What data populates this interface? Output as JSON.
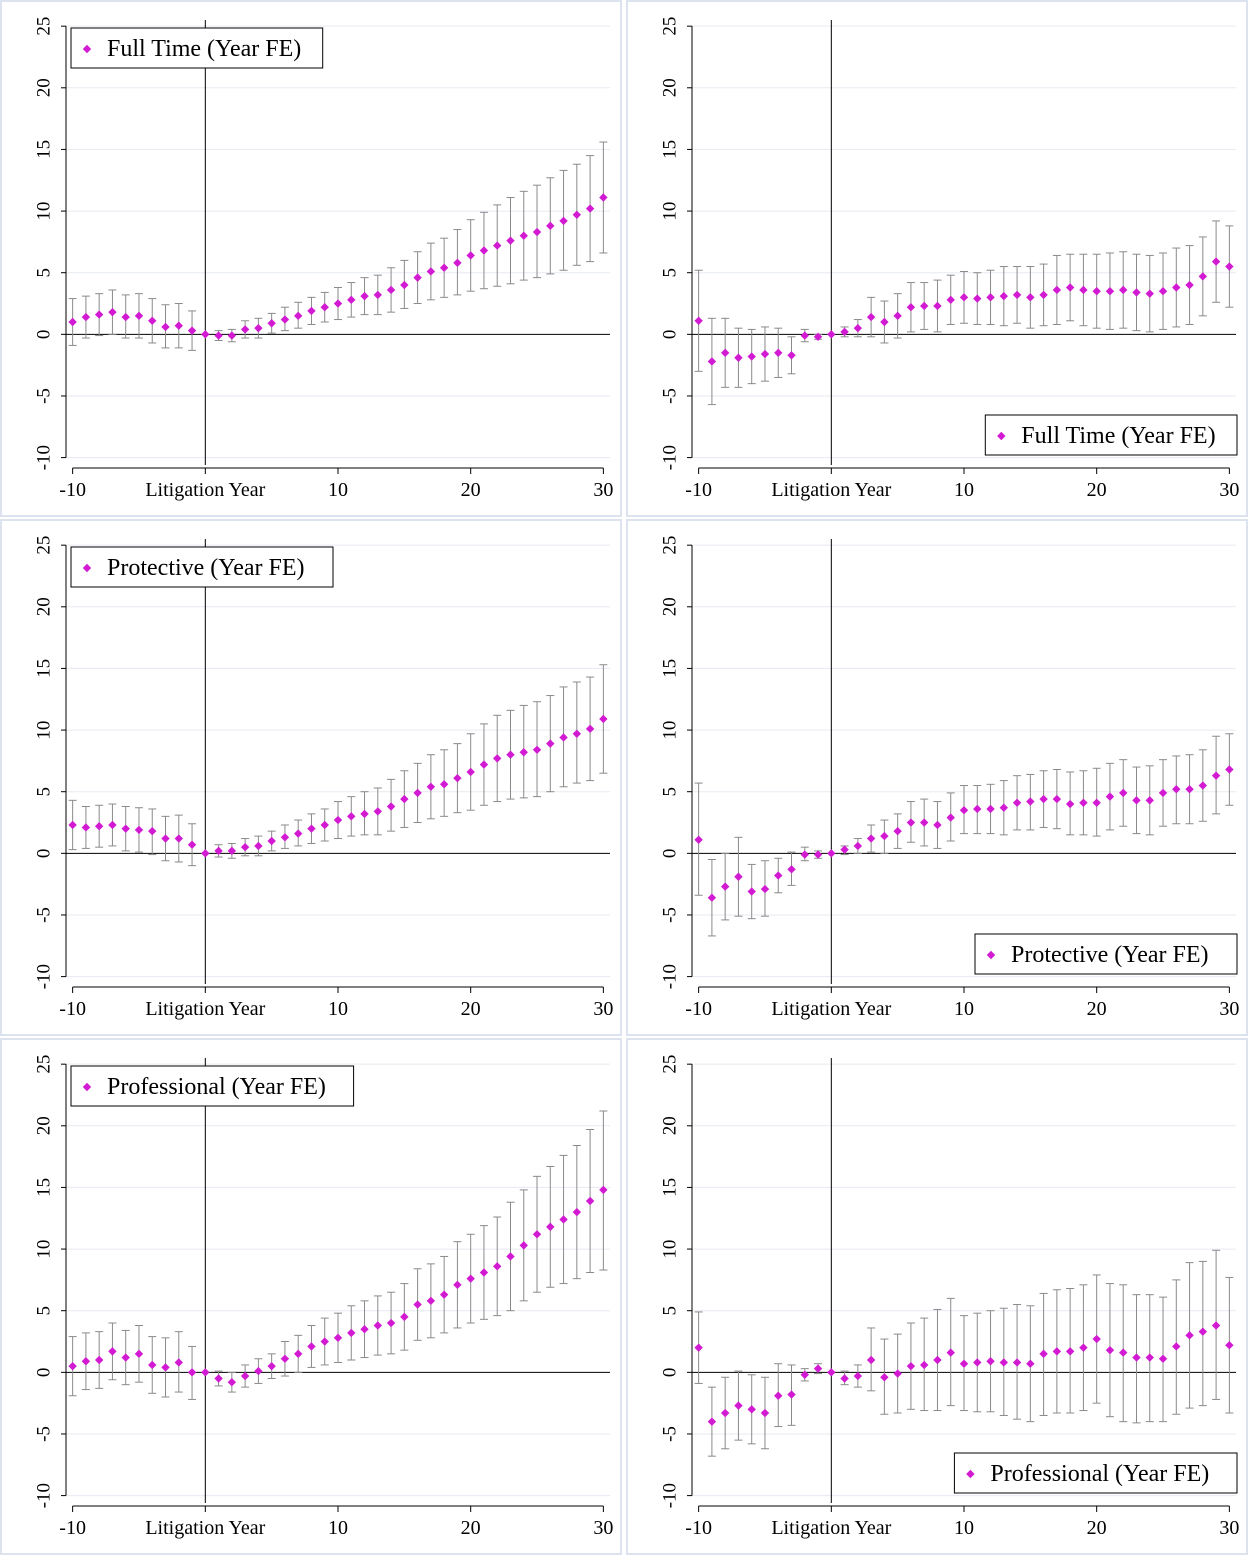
{
  "chart_data": [
    {
      "type": "scatter",
      "legend": "Full Time (Year FE)",
      "legend_position": "top-left",
      "xlabel": "Litigation Year",
      "x_ticks": [
        -10,
        10,
        20,
        30
      ],
      "y_ticks": [
        -10,
        -5,
        0,
        5,
        10,
        15,
        20,
        25
      ],
      "xlim": [
        -10.5,
        30.5
      ],
      "ylim": [
        -10.6,
        25.5
      ],
      "x": [
        -10,
        -9,
        -8,
        -7,
        -6,
        -5,
        -4,
        -3,
        -2,
        -1,
        0,
        1,
        2,
        3,
        4,
        5,
        6,
        7,
        8,
        9,
        10,
        11,
        12,
        13,
        14,
        15,
        16,
        17,
        18,
        19,
        20,
        21,
        22,
        23,
        24,
        25,
        26,
        27,
        28,
        29,
        30
      ],
      "y": [
        1.0,
        1.4,
        1.6,
        1.8,
        1.4,
        1.5,
        1.1,
        0.6,
        0.7,
        0.3,
        0.0,
        -0.1,
        -0.1,
        0.4,
        0.5,
        0.9,
        1.2,
        1.5,
        1.9,
        2.2,
        2.5,
        2.8,
        3.1,
        3.2,
        3.6,
        4.0,
        4.6,
        5.1,
        5.4,
        5.8,
        6.4,
        6.8,
        7.2,
        7.6,
        8.0,
        8.3,
        8.8,
        9.2,
        9.7,
        10.2,
        11.1
      ],
      "lower": [
        -0.9,
        -0.3,
        -0.1,
        0.0,
        -0.3,
        -0.3,
        -0.7,
        -1.1,
        -1.1,
        -1.3,
        0.0,
        -0.5,
        -0.6,
        -0.3,
        -0.3,
        0.1,
        0.3,
        0.5,
        0.8,
        1.0,
        1.2,
        1.4,
        1.6,
        1.6,
        1.8,
        2.1,
        2.5,
        2.8,
        3.0,
        3.2,
        3.5,
        3.7,
        3.9,
        4.1,
        4.4,
        4.6,
        4.9,
        5.2,
        5.6,
        5.9,
        6.6
      ],
      "upper": [
        2.9,
        3.1,
        3.3,
        3.6,
        3.2,
        3.3,
        2.9,
        2.4,
        2.5,
        1.9,
        0.0,
        0.3,
        0.4,
        1.1,
        1.3,
        1.7,
        2.2,
        2.6,
        3.0,
        3.4,
        3.8,
        4.2,
        4.6,
        4.8,
        5.4,
        6.0,
        6.7,
        7.4,
        7.8,
        8.5,
        9.3,
        9.9,
        10.5,
        11.1,
        11.6,
        12.1,
        12.7,
        13.3,
        13.8,
        14.5,
        15.6
      ]
    },
    {
      "type": "scatter",
      "legend": "Full Time (Year FE)",
      "legend_position": "bottom-right",
      "xlabel": "Litigation Year",
      "x_ticks": [
        -10,
        10,
        20,
        30
      ],
      "y_ticks": [
        -10,
        -5,
        0,
        5,
        10,
        15,
        20,
        25
      ],
      "xlim": [
        -10.5,
        30.5
      ],
      "ylim": [
        -10.6,
        25.5
      ],
      "x": [
        -10,
        -9,
        -8,
        -7,
        -6,
        -5,
        -4,
        -3,
        -2,
        -1,
        0,
        1,
        2,
        3,
        4,
        5,
        6,
        7,
        8,
        9,
        10,
        11,
        12,
        13,
        14,
        15,
        16,
        17,
        18,
        19,
        20,
        21,
        22,
        23,
        24,
        25,
        26,
        27,
        28,
        29,
        30
      ],
      "y": [
        1.1,
        -2.2,
        -1.5,
        -1.9,
        -1.8,
        -1.6,
        -1.5,
        -1.7,
        -0.1,
        -0.2,
        0.0,
        0.2,
        0.5,
        1.4,
        1.0,
        1.5,
        2.2,
        2.3,
        2.3,
        2.8,
        3.0,
        2.9,
        3.0,
        3.1,
        3.2,
        3.0,
        3.2,
        3.6,
        3.8,
        3.6,
        3.5,
        3.5,
        3.6,
        3.4,
        3.3,
        3.5,
        3.8,
        4.0,
        4.7,
        5.9,
        5.5
      ],
      "lower": [
        -3.0,
        -5.7,
        -4.3,
        -4.3,
        -4.0,
        -3.8,
        -3.5,
        -3.2,
        -0.6,
        -0.4,
        0.0,
        -0.2,
        -0.2,
        -0.2,
        -0.7,
        -0.3,
        0.2,
        0.4,
        0.2,
        0.8,
        0.9,
        0.8,
        0.8,
        0.7,
        0.9,
        0.5,
        0.7,
        0.8,
        1.1,
        0.7,
        0.5,
        0.4,
        0.5,
        0.3,
        0.2,
        0.4,
        0.6,
        0.8,
        1.5,
        2.6,
        2.2
      ],
      "upper": [
        5.2,
        1.3,
        1.3,
        0.5,
        0.4,
        0.6,
        0.5,
        -0.2,
        0.4,
        0.0,
        0.0,
        0.6,
        1.2,
        3.0,
        2.7,
        3.3,
        4.2,
        4.2,
        4.4,
        4.8,
        5.1,
        5.0,
        5.2,
        5.5,
        5.5,
        5.5,
        5.7,
        6.4,
        6.5,
        6.5,
        6.5,
        6.6,
        6.7,
        6.5,
        6.4,
        6.6,
        7.0,
        7.2,
        7.9,
        9.2,
        8.8
      ]
    },
    {
      "type": "scatter",
      "legend": "Protective (Year FE)",
      "legend_position": "top-left",
      "xlabel": "Litigation Year",
      "x_ticks": [
        -10,
        10,
        20,
        30
      ],
      "y_ticks": [
        -10,
        -5,
        0,
        5,
        10,
        15,
        20,
        25
      ],
      "xlim": [
        -10.5,
        30.5
      ],
      "ylim": [
        -10.6,
        25.5
      ],
      "x": [
        -10,
        -9,
        -8,
        -7,
        -6,
        -5,
        -4,
        -3,
        -2,
        -1,
        0,
        1,
        2,
        3,
        4,
        5,
        6,
        7,
        8,
        9,
        10,
        11,
        12,
        13,
        14,
        15,
        16,
        17,
        18,
        19,
        20,
        21,
        22,
        23,
        24,
        25,
        26,
        27,
        28,
        29,
        30
      ],
      "y": [
        2.3,
        2.1,
        2.2,
        2.3,
        2.0,
        1.9,
        1.8,
        1.2,
        1.2,
        0.7,
        0.0,
        0.2,
        0.2,
        0.5,
        0.6,
        1.0,
        1.3,
        1.6,
        2.0,
        2.3,
        2.7,
        3.0,
        3.2,
        3.4,
        3.8,
        4.4,
        4.9,
        5.4,
        5.6,
        6.1,
        6.6,
        7.2,
        7.7,
        8.0,
        8.2,
        8.4,
        8.9,
        9.4,
        9.7,
        10.1,
        10.9
      ],
      "lower": [
        0.3,
        0.4,
        0.5,
        0.6,
        0.2,
        0.1,
        -0.1,
        -0.6,
        -0.7,
        -1.0,
        0.0,
        -0.3,
        -0.4,
        -0.2,
        -0.2,
        0.2,
        0.4,
        0.6,
        0.8,
        1.0,
        1.2,
        1.4,
        1.5,
        1.5,
        1.8,
        2.1,
        2.5,
        2.8,
        3.0,
        3.3,
        3.5,
        3.9,
        4.2,
        4.4,
        4.5,
        4.6,
        5.0,
        5.4,
        5.7,
        5.9,
        6.5
      ],
      "upper": [
        4.3,
        3.8,
        3.9,
        4.0,
        3.8,
        3.7,
        3.6,
        3.0,
        3.1,
        2.4,
        0.0,
        0.7,
        0.8,
        1.2,
        1.4,
        1.8,
        2.3,
        2.7,
        3.2,
        3.6,
        4.2,
        4.6,
        5.0,
        5.3,
        6.0,
        6.7,
        7.3,
        8.0,
        8.4,
        8.9,
        9.7,
        10.5,
        11.2,
        11.6,
        12.0,
        12.3,
        12.8,
        13.5,
        13.9,
        14.3,
        15.3
      ]
    },
    {
      "type": "scatter",
      "legend": "Protective (Year FE)",
      "legend_position": "bottom-right",
      "xlabel": "Litigation Year",
      "x_ticks": [
        -10,
        10,
        20,
        30
      ],
      "y_ticks": [
        -10,
        -5,
        0,
        5,
        10,
        15,
        20,
        25
      ],
      "xlim": [
        -10.5,
        30.5
      ],
      "ylim": [
        -10.6,
        25.5
      ],
      "x": [
        -10,
        -9,
        -8,
        -7,
        -6,
        -5,
        -4,
        -3,
        -2,
        -1,
        0,
        1,
        2,
        3,
        4,
        5,
        6,
        7,
        8,
        9,
        10,
        11,
        12,
        13,
        14,
        15,
        16,
        17,
        18,
        19,
        20,
        21,
        22,
        23,
        24,
        25,
        26,
        27,
        28,
        29,
        30
      ],
      "y": [
        1.1,
        -3.6,
        -2.7,
        -1.9,
        -3.1,
        -2.9,
        -1.8,
        -1.3,
        -0.1,
        -0.1,
        0.0,
        0.3,
        0.6,
        1.2,
        1.4,
        1.8,
        2.5,
        2.5,
        2.3,
        2.9,
        3.5,
        3.6,
        3.6,
        3.7,
        4.1,
        4.2,
        4.4,
        4.4,
        4.0,
        4.1,
        4.1,
        4.6,
        4.9,
        4.3,
        4.3,
        4.9,
        5.2,
        5.2,
        5.5,
        6.3,
        6.8
      ],
      "lower": [
        -3.4,
        -6.7,
        -5.4,
        -5.1,
        -5.3,
        -5.1,
        -3.2,
        -2.6,
        -0.6,
        -0.4,
        0.0,
        -0.1,
        0.0,
        0.1,
        0.0,
        0.4,
        0.9,
        0.6,
        0.4,
        1.0,
        1.6,
        1.6,
        1.6,
        1.5,
        1.9,
        1.9,
        2.1,
        2.0,
        1.5,
        1.5,
        1.4,
        1.9,
        2.2,
        1.6,
        1.5,
        2.2,
        2.4,
        2.4,
        2.6,
        3.2,
        3.9
      ],
      "upper": [
        5.7,
        -0.5,
        0.0,
        1.3,
        -0.9,
        -0.6,
        -0.4,
        0.1,
        0.5,
        0.2,
        0.0,
        0.6,
        1.2,
        2.3,
        2.7,
        3.2,
        4.2,
        4.4,
        4.2,
        4.9,
        5.5,
        5.5,
        5.6,
        5.9,
        6.3,
        6.4,
        6.7,
        6.8,
        6.6,
        6.7,
        6.9,
        7.3,
        7.6,
        7.0,
        7.1,
        7.6,
        7.9,
        8.0,
        8.4,
        9.5,
        9.7
      ]
    },
    {
      "type": "scatter",
      "legend": "Professional (Year FE)",
      "legend_position": "top-left",
      "xlabel": "Litigation Year",
      "x_ticks": [
        -10,
        10,
        20,
        30
      ],
      "y_ticks": [
        -10,
        -5,
        0,
        5,
        10,
        15,
        20,
        25
      ],
      "xlim": [
        -10.5,
        30.5
      ],
      "ylim": [
        -10.6,
        25.5
      ],
      "x": [
        -10,
        -9,
        -8,
        -7,
        -6,
        -5,
        -4,
        -3,
        -2,
        -1,
        0,
        1,
        2,
        3,
        4,
        5,
        6,
        7,
        8,
        9,
        10,
        11,
        12,
        13,
        14,
        15,
        16,
        17,
        18,
        19,
        20,
        21,
        22,
        23,
        24,
        25,
        26,
        27,
        28,
        29,
        30
      ],
      "y": [
        0.5,
        0.9,
        1.0,
        1.7,
        1.2,
        1.5,
        0.6,
        0.4,
        0.8,
        0.0,
        0.0,
        -0.5,
        -0.8,
        -0.3,
        0.1,
        0.5,
        1.1,
        1.5,
        2.1,
        2.5,
        2.8,
        3.2,
        3.5,
        3.8,
        4.0,
        4.5,
        5.5,
        5.8,
        6.3,
        7.1,
        7.6,
        8.1,
        8.6,
        9.4,
        10.3,
        11.2,
        11.8,
        12.4,
        13.0,
        13.9,
        14.8
      ],
      "lower": [
        -1.9,
        -1.4,
        -1.3,
        -0.6,
        -1.0,
        -0.8,
        -1.7,
        -2.0,
        -1.6,
        -2.2,
        0.0,
        -1.1,
        -1.6,
        -1.2,
        -0.9,
        -0.5,
        -0.3,
        0.0,
        0.4,
        0.6,
        0.8,
        1.0,
        1.2,
        1.4,
        1.5,
        1.8,
        2.6,
        2.8,
        3.2,
        3.6,
        4.0,
        4.3,
        4.6,
        5.0,
        5.8,
        6.5,
        6.9,
        7.2,
        7.6,
        8.1,
        8.3
      ],
      "upper": [
        2.9,
        3.2,
        3.3,
        4.0,
        3.4,
        3.8,
        2.9,
        2.8,
        3.3,
        2.1,
        0.0,
        0.1,
        0.0,
        0.6,
        1.1,
        1.5,
        2.5,
        3.0,
        3.8,
        4.4,
        4.8,
        5.4,
        5.8,
        6.2,
        6.5,
        7.2,
        8.4,
        8.8,
        9.4,
        10.6,
        11.2,
        11.9,
        12.6,
        13.8,
        14.8,
        15.9,
        16.7,
        17.6,
        18.4,
        19.7,
        21.2
      ]
    },
    {
      "type": "scatter",
      "legend": "Professional (Year FE)",
      "legend_position": "bottom-right",
      "xlabel": "Litigation Year",
      "x_ticks": [
        -10,
        10,
        20,
        30
      ],
      "y_ticks": [
        -10,
        -5,
        0,
        5,
        10,
        15,
        20,
        25
      ],
      "xlim": [
        -10.5,
        30.5
      ],
      "ylim": [
        -10.6,
        25.5
      ],
      "x": [
        -10,
        -9,
        -8,
        -7,
        -6,
        -5,
        -4,
        -3,
        -2,
        -1,
        0,
        1,
        2,
        3,
        4,
        5,
        6,
        7,
        8,
        9,
        10,
        11,
        12,
        13,
        14,
        15,
        16,
        17,
        18,
        19,
        20,
        21,
        22,
        23,
        24,
        25,
        26,
        27,
        28,
        29,
        30
      ],
      "y": [
        2.0,
        -4.0,
        -3.3,
        -2.7,
        -3.0,
        -3.3,
        -1.9,
        -1.8,
        -0.2,
        0.3,
        0.0,
        -0.5,
        -0.3,
        1.0,
        -0.4,
        -0.1,
        0.5,
        0.6,
        1.0,
        1.6,
        0.7,
        0.8,
        0.9,
        0.8,
        0.8,
        0.7,
        1.5,
        1.7,
        1.7,
        2.0,
        2.7,
        1.8,
        1.6,
        1.2,
        1.2,
        1.1,
        2.1,
        3.0,
        3.3,
        3.8,
        2.2
      ],
      "lower": [
        -0.9,
        -6.8,
        -6.2,
        -5.5,
        -5.8,
        -6.2,
        -4.4,
        -4.3,
        -0.7,
        -0.1,
        0.0,
        -1.0,
        -1.2,
        -1.5,
        -3.4,
        -3.3,
        -3.0,
        -3.1,
        -3.1,
        -2.7,
        -3.1,
        -3.2,
        -3.2,
        -3.5,
        -3.8,
        -4.0,
        -3.5,
        -3.3,
        -3.3,
        -3.1,
        -2.5,
        -3.6,
        -4.0,
        -4.1,
        -4.0,
        -4.0,
        -3.4,
        -2.9,
        -2.7,
        -2.2,
        -3.3
      ],
      "upper": [
        4.9,
        -1.2,
        -0.4,
        0.1,
        -0.2,
        -0.4,
        0.7,
        0.6,
        0.3,
        0.7,
        0.0,
        0.1,
        0.6,
        3.6,
        2.7,
        3.1,
        4.0,
        4.4,
        5.1,
        6.0,
        4.6,
        4.8,
        5.0,
        5.2,
        5.5,
        5.4,
        6.4,
        6.7,
        6.8,
        7.1,
        7.9,
        7.2,
        7.1,
        6.3,
        6.3,
        6.1,
        7.5,
        8.9,
        9.0,
        9.9,
        7.7
      ]
    }
  ]
}
